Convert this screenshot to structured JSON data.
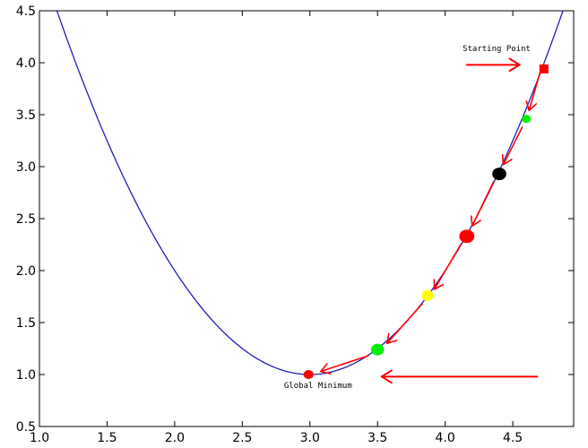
{
  "chart_data": {
    "type": "line",
    "title": "",
    "xlabel": "",
    "ylabel": "",
    "xlim": [
      1.0,
      4.95
    ],
    "ylim": [
      0.5,
      4.5
    ],
    "grid": false,
    "x_ticks": [
      "1.0",
      "1.5",
      "2.0",
      "2.5",
      "3.0",
      "3.5",
      "4.0",
      "4.5"
    ],
    "y_ticks": [
      "0.5",
      "1.0",
      "1.5",
      "2.0",
      "2.5",
      "3.0",
      "3.5",
      "4.0",
      "4.5"
    ],
    "curve": {
      "function": "(x-3)^2 + 1",
      "x_min": 1.0,
      "x_max": 4.95,
      "color": "#1f1fb4"
    },
    "points": [
      {
        "x": 4.73,
        "y": 3.94,
        "color": "#ff0000",
        "shape": "square",
        "size": 5
      },
      {
        "x": 4.6,
        "y": 3.46,
        "color": "#00ee00",
        "shape": "circle",
        "size": 4.5
      },
      {
        "x": 4.4,
        "y": 2.93,
        "color": "#000000",
        "shape": "circle",
        "size": 7
      },
      {
        "x": 4.16,
        "y": 2.33,
        "color": "#ff0000",
        "shape": "circle",
        "size": 7.5
      },
      {
        "x": 3.87,
        "y": 1.76,
        "color": "#ffff00",
        "shape": "circle",
        "size": 6
      },
      {
        "x": 3.5,
        "y": 1.24,
        "color": "#00ee00",
        "shape": "circle",
        "size": 6.5
      },
      {
        "x": 2.99,
        "y": 1.0,
        "color": "#ff0000",
        "shape": "circle",
        "size": 5
      }
    ],
    "step_arrows": [
      {
        "from": [
          4.7,
          3.9
        ],
        "to": [
          4.62,
          3.54
        ]
      },
      {
        "from": [
          4.57,
          3.38
        ],
        "to": [
          4.43,
          3.02
        ]
      },
      {
        "from": [
          4.36,
          2.86
        ],
        "to": [
          4.2,
          2.43
        ]
      },
      {
        "from": [
          4.12,
          2.26
        ],
        "to": [
          3.92,
          1.82
        ]
      },
      {
        "from": [
          3.83,
          1.68
        ],
        "to": [
          3.57,
          1.3
        ]
      },
      {
        "from": [
          3.43,
          1.18
        ],
        "to": [
          3.08,
          1.03
        ]
      }
    ],
    "annotations": [
      {
        "text": "Starting Point",
        "x": 4.38,
        "y": 4.11,
        "anchor": "middle"
      },
      {
        "text": "Global Minimum",
        "x": 3.06,
        "y": 0.87,
        "anchor": "middle"
      }
    ],
    "big_arrows": [
      {
        "from": [
          4.16,
          3.98
        ],
        "to": [
          4.55,
          3.98
        ]
      },
      {
        "from": [
          4.68,
          0.98
        ],
        "to": [
          3.53,
          0.98
        ]
      }
    ],
    "arrow_color": "#ff0000"
  }
}
